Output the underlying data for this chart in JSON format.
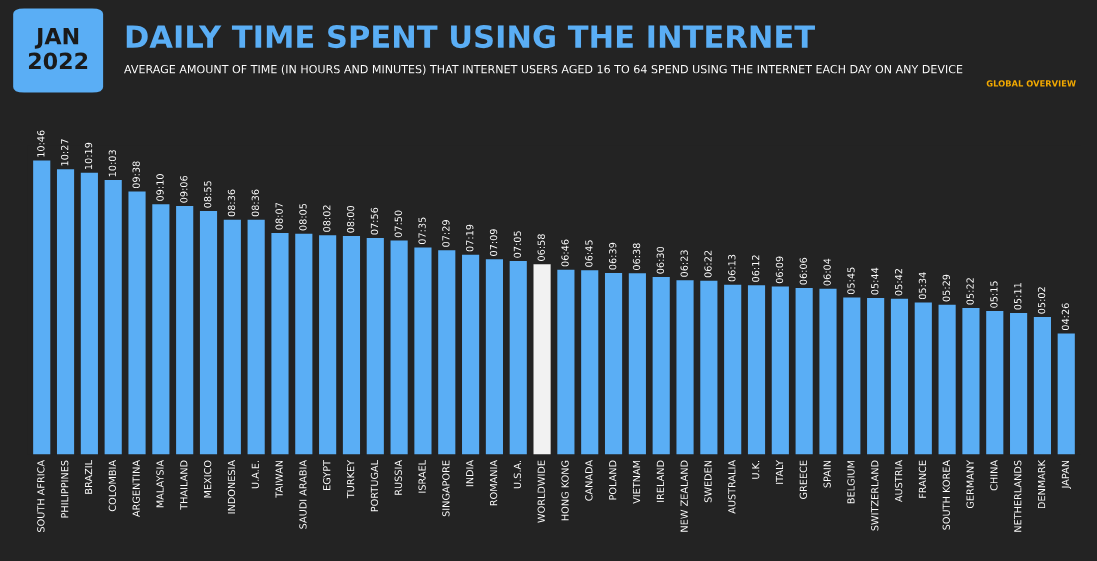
{
  "chart_data": {
    "type": "bar",
    "title": "DAILY TIME SPENT USING THE INTERNET",
    "subtitle": "AVERAGE AMOUNT OF TIME (IN HOURS AND MINUTES) THAT INTERNET USERS AGED 16 TO 64 SPEND USING THE INTERNET EACH DAY ON ANY DEVICE",
    "annotations": [
      "JAN\n2022",
      "GLOBAL OVERVIEW"
    ],
    "categories": [
      "SOUTH AFRICA",
      "PHILIPPINES",
      "BRAZIL",
      "COLOMBIA",
      "ARGENTINA",
      "MALAYSIA",
      "THAILAND",
      "MEXICO",
      "INDONESIA",
      "U.A.E.",
      "TAIWAN",
      "SAUDI ARABIA",
      "EGYPT",
      "TURKEY",
      "PORTUGAL",
      "RUSSIA",
      "ISRAEL",
      "SINGAPORE",
      "INDIA",
      "ROMANIA",
      "U.S.A.",
      "WORLDWIDE",
      "HONG KONG",
      "CANADA",
      "POLAND",
      "VIETNAM",
      "IRELAND",
      "NEW ZEALAND",
      "SWEDEN",
      "AUSTRALIA",
      "U.K.",
      "ITALY",
      "GREECE",
      "SPAIN",
      "BELGIUM",
      "SWITZERLAND",
      "AUSTRIA",
      "FRANCE",
      "SOUTH KOREA",
      "GERMANY",
      "CHINA",
      "NETHERLANDS",
      "DENMARK",
      "JAPAN"
    ],
    "values": [
      646,
      627,
      619,
      603,
      578,
      550,
      546,
      535,
      516,
      516,
      487,
      485,
      482,
      480,
      476,
      470,
      455,
      449,
      439,
      429,
      425,
      418,
      406,
      405,
      399,
      398,
      390,
      383,
      382,
      373,
      372,
      369,
      366,
      364,
      345,
      344,
      342,
      334,
      329,
      322,
      315,
      311,
      302,
      266
    ],
    "value_labels": [
      "10:46",
      "10:27",
      "10:19",
      "10:03",
      "09:38",
      "09:10",
      "09:06",
      "08:55",
      "08:36",
      "08:36",
      "08:07",
      "08:05",
      "08:02",
      "08:00",
      "07:56",
      "07:50",
      "07:35",
      "07:29",
      "07:19",
      "07:09",
      "07:05",
      "06:58",
      "06:46",
      "06:45",
      "06:39",
      "06:38",
      "06:30",
      "06:23",
      "06:22",
      "06:13",
      "06:12",
      "06:09",
      "06:06",
      "06:04",
      "05:45",
      "05:44",
      "05:42",
      "05:34",
      "05:29",
      "05:22",
      "05:15",
      "05:11",
      "05:02",
      "04:26"
    ],
    "colors": [
      "#5aaef5",
      "#5aaef5",
      "#5aaef5",
      "#5aaef5",
      "#5aaef5",
      "#5aaef5",
      "#5aaef5",
      "#5aaef5",
      "#5aaef5",
      "#5aaef5",
      "#5aaef5",
      "#5aaef5",
      "#5aaef5",
      "#5aaef5",
      "#5aaef5",
      "#5aaef5",
      "#5aaef5",
      "#5aaef5",
      "#5aaef5",
      "#5aaef5",
      "#5aaef5",
      "#f2f2f2",
      "#5aaef5",
      "#5aaef5",
      "#5aaef5",
      "#5aaef5",
      "#5aaef5",
      "#5aaef5",
      "#5aaef5",
      "#5aaef5",
      "#5aaef5",
      "#5aaef5",
      "#5aaef5",
      "#5aaef5",
      "#5aaef5",
      "#5aaef5",
      "#5aaef5",
      "#5aaef5",
      "#5aaef5",
      "#5aaef5",
      "#5aaef5",
      "#5aaef5",
      "#5aaef5",
      "#5aaef5"
    ]
  }
}
